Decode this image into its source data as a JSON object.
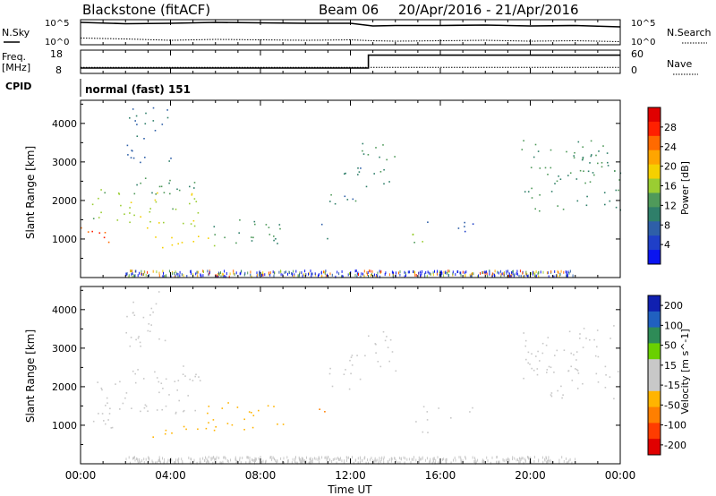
{
  "header": {
    "station": "Blackstone (fitACF)",
    "beam": "Beam 06",
    "date_range": "20/Apr/2016 - 21/Apr/2016"
  },
  "summary": {
    "nsky_label": "N.Sky",
    "nsearch_label": "N.Search",
    "noise_ticks": [
      "10^5",
      "10^0"
    ],
    "freq_label": "Freq.",
    "freq_unit": "[MHz]",
    "freq_ticks": [
      "18",
      "8"
    ],
    "nave_label": "Nave",
    "nave_ticks": [
      "60",
      "0"
    ],
    "cpid_label": "CPID",
    "cpid_value": "normal (fast) 151"
  },
  "colors": {
    "power_scale": [
      "#0a14f0",
      "#1f3fc8",
      "#2e5fa8",
      "#2f7f6a",
      "#4f9a5a",
      "#9acd32",
      "#f5d000",
      "#ffa500",
      "#ff6a00",
      "#ff2000",
      "#e00000"
    ],
    "velocity_scale": [
      "#e00000",
      "#ff3c00",
      "#ff7f00",
      "#ffb400",
      "#c8c8c8",
      "#c8c8c8",
      "#6ad000",
      "#2e8b57",
      "#2060c0",
      "#1020b0"
    ]
  },
  "chart_data": [
    {
      "type": "line",
      "panel": "noise",
      "x_unit": "hours UT",
      "x_range": [
        0,
        24
      ],
      "y_scale": "log",
      "series": [
        {
          "name": "N.Sky",
          "x": [
            0,
            2,
            4,
            6,
            8,
            10,
            12,
            13,
            14,
            16,
            18,
            20,
            22,
            24
          ],
          "y": [
            5,
            4.7,
            4.8,
            5,
            4.9,
            4.8,
            4.8,
            4.2,
            4.3,
            4.3,
            4.4,
            4.2,
            4.3,
            4.0
          ]
        },
        {
          "name": "N.Search",
          "x": [
            0,
            2,
            4,
            6,
            8,
            10,
            12,
            13,
            14,
            16,
            18,
            20,
            22,
            24
          ],
          "y": [
            1.5,
            1.3,
            1.0,
            1.2,
            1.1,
            1.0,
            1.1,
            0.9,
            0.8,
            0.9,
            1.0,
            0.8,
            0.9,
            0.7
          ]
        }
      ]
    },
    {
      "type": "line",
      "panel": "frequency-nave",
      "x_unit": "hours UT",
      "x_range": [
        0,
        24
      ],
      "series": [
        {
          "name": "Freq.",
          "x": [
            0,
            12.8,
            12.8,
            24
          ],
          "y": [
            10.5,
            10.5,
            16.5,
            16.5
          ]
        },
        {
          "name": "Nave",
          "x": [
            0,
            24
          ],
          "y": [
            17,
            17
          ]
        }
      ],
      "ylim_freq": [
        8,
        18
      ],
      "ylim_nave": [
        0,
        60
      ]
    },
    {
      "type": "heatmap",
      "panel": "power",
      "ylabel": "Slant Range [km]",
      "colorbar_label": "Power [dB]",
      "colorbar_ticks": [
        28,
        24,
        20,
        16,
        12,
        8,
        4
      ],
      "colorbar_range": [
        0,
        32
      ],
      "x_range": [
        0,
        24
      ],
      "y_range": [
        0,
        4600
      ],
      "yticks": [
        1000,
        2000,
        3000,
        4000
      ],
      "bands": [
        {
          "x0": 0,
          "x1": 1.5,
          "y0": 800,
          "y1": 1350,
          "value": 26
        },
        {
          "x0": 0.5,
          "x1": 5.5,
          "y0": 1300,
          "y1": 2300,
          "value": 16
        },
        {
          "x0": 1.8,
          "x1": 5.2,
          "y0": 2100,
          "y1": 2600,
          "value": 12
        },
        {
          "x0": 2,
          "x1": 4,
          "y0": 3000,
          "y1": 4500,
          "value": 8
        },
        {
          "x0": 3,
          "x1": 6,
          "y0": 700,
          "y1": 1100,
          "value": 18
        },
        {
          "x0": 5.5,
          "x1": 9,
          "y0": 900,
          "y1": 1600,
          "value": 12
        },
        {
          "x0": 10.5,
          "x1": 11,
          "y0": 1000,
          "y1": 1500,
          "value": 8
        },
        {
          "x0": 11,
          "x1": 12.5,
          "y0": 1900,
          "y1": 2900,
          "value": 10
        },
        {
          "x0": 12.5,
          "x1": 14,
          "y0": 2300,
          "y1": 3500,
          "value": 12
        },
        {
          "x0": 14.5,
          "x1": 15.5,
          "y0": 700,
          "y1": 1200,
          "value": 14
        },
        {
          "x0": 15,
          "x1": 17.5,
          "y0": 1200,
          "y1": 1500,
          "value": 6
        },
        {
          "x0": 19.5,
          "x1": 24,
          "y0": 1700,
          "y1": 3600,
          "value": 12
        }
      ]
    },
    {
      "type": "heatmap",
      "panel": "velocity",
      "ylabel": "Slant Range [km]",
      "colorbar_label": "Velocity [m s^-1]",
      "colorbar_ticks": [
        200,
        100,
        50,
        15,
        -15,
        -50,
        -100,
        -200
      ],
      "colorbar_range": [
        -250,
        250
      ],
      "x_range": [
        0,
        24
      ],
      "y_range": [
        0,
        4600
      ],
      "yticks": [
        1000,
        2000,
        3000,
        4000
      ],
      "bands": [
        {
          "x0": 0,
          "x1": 1.5,
          "y0": 800,
          "y1": 1350,
          "value": 0
        },
        {
          "x0": 0.5,
          "x1": 5.5,
          "y0": 1300,
          "y1": 2300,
          "value": 0
        },
        {
          "x0": 1.8,
          "x1": 5.2,
          "y0": 2100,
          "y1": 2600,
          "value": 0
        },
        {
          "x0": 2,
          "x1": 4,
          "y0": 3000,
          "y1": 4500,
          "value": -30
        },
        {
          "x0": 3,
          "x1": 6,
          "y0": 700,
          "y1": 1100,
          "value": -60
        },
        {
          "x0": 5.5,
          "x1": 9,
          "y0": 900,
          "y1": 1600,
          "value": -70
        },
        {
          "x0": 10.5,
          "x1": 11,
          "y0": 1000,
          "y1": 1500,
          "value": -120
        },
        {
          "x0": 11,
          "x1": 12.5,
          "y0": 1900,
          "y1": 2900,
          "value": 0
        },
        {
          "x0": 12.5,
          "x1": 14,
          "y0": 2300,
          "y1": 3500,
          "value": 0
        },
        {
          "x0": 14.5,
          "x1": 15.5,
          "y0": 700,
          "y1": 1200,
          "value": 0
        },
        {
          "x0": 15,
          "x1": 17.5,
          "y0": 1200,
          "y1": 1500,
          "value": 0
        },
        {
          "x0": 19.5,
          "x1": 24,
          "y0": 1700,
          "y1": 3600,
          "value": 0
        }
      ]
    }
  ],
  "x_axis": {
    "ticks": [
      "00:00",
      "04:00",
      "08:00",
      "12:00",
      "16:00",
      "20:00",
      "00:00"
    ],
    "label": "Time UT"
  }
}
